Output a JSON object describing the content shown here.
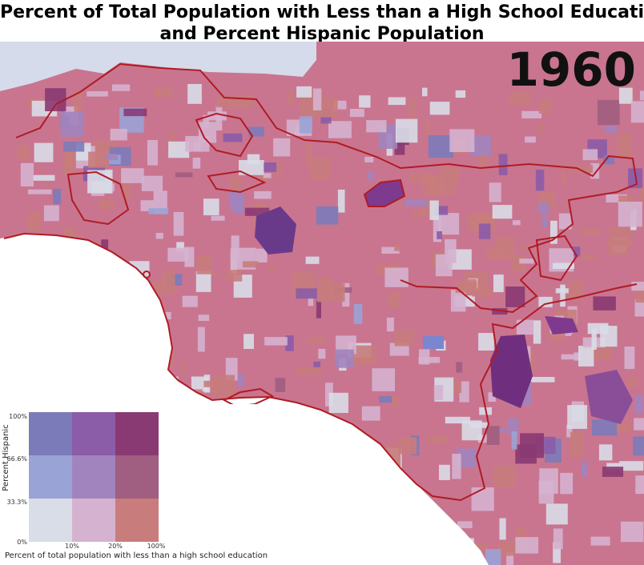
{
  "title": {
    "line1": "Percent of Total Population with Less than a High School Education",
    "line2": "and Percent Hispanic Population"
  },
  "year": "1960",
  "legend": {
    "y_label": "Percent Hispanic",
    "x_label": "Percent of total population with less than a high school education",
    "y_ticks": [
      "100%",
      "66.6%",
      "33.3%",
      "0%"
    ],
    "x_ticks": [
      "10%",
      "20%",
      "100%"
    ],
    "colors": [
      [
        "#7c7bb9",
        "#8b5ca8",
        "#8a3a72"
      ],
      [
        "#9aa3d6",
        "#a184be",
        "#a05e80"
      ],
      [
        "#d9dde8",
        "#d5b2cf",
        "#c87c7c"
      ]
    ]
  },
  "map_colors": {
    "background": "#c97590",
    "water": "#d5dbea",
    "boundary": "#b01b24"
  }
}
